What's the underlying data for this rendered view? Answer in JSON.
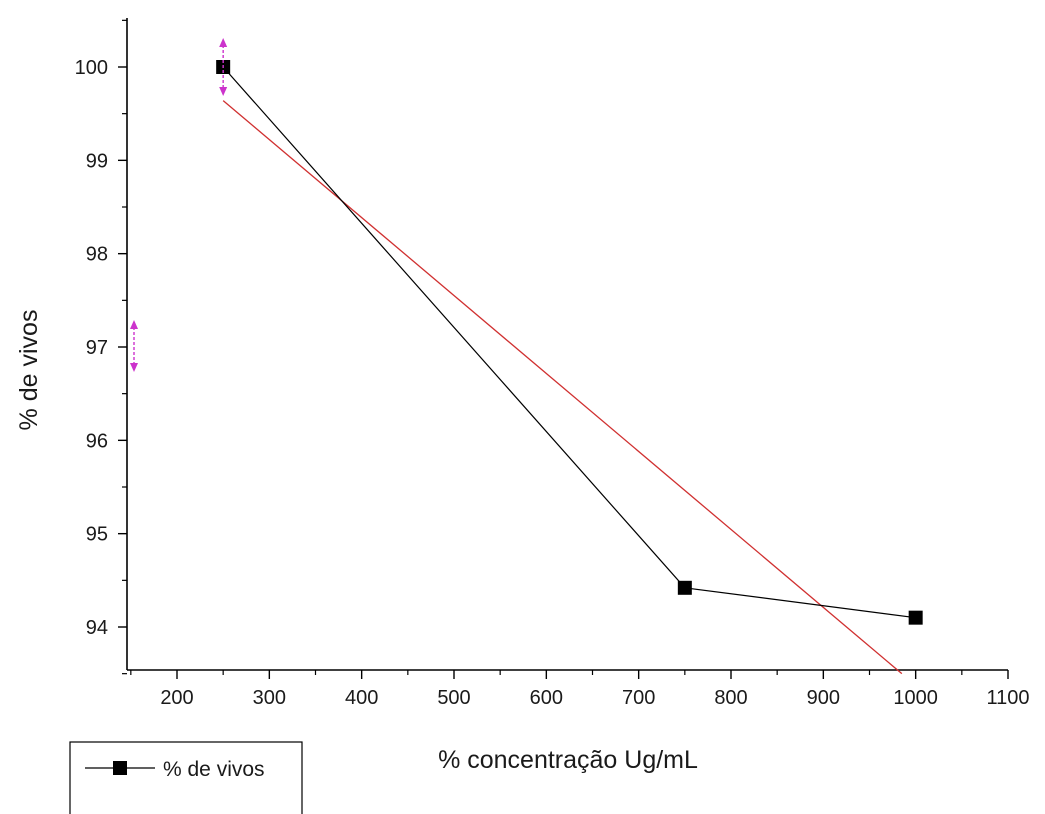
{
  "chart_data": {
    "type": "line",
    "title": "",
    "xlabel": "% concentração Ug/mL",
    "ylabel": "% de vivos",
    "xlim": [
      150,
      1100
    ],
    "ylim": [
      93.5,
      100.5
    ],
    "x_ticks": [
      200,
      300,
      400,
      500,
      600,
      700,
      800,
      900,
      1000,
      1100
    ],
    "y_ticks": [
      94,
      95,
      96,
      97,
      98,
      99,
      100
    ],
    "grid": false,
    "legend": {
      "position": "bottom-left",
      "entries": [
        "% de vivos"
      ]
    },
    "series": [
      {
        "name": "% de vivos",
        "x": [
          250,
          750,
          1000
        ],
        "y": [
          100.0,
          94.42,
          94.1
        ],
        "color": "#000000",
        "marker": "square"
      }
    ],
    "fit_line": {
      "x": [
        250,
        985
      ],
      "y": [
        99.64,
        93.5
      ],
      "color": "#d03030"
    },
    "annotation_color": "#cc33cc"
  }
}
